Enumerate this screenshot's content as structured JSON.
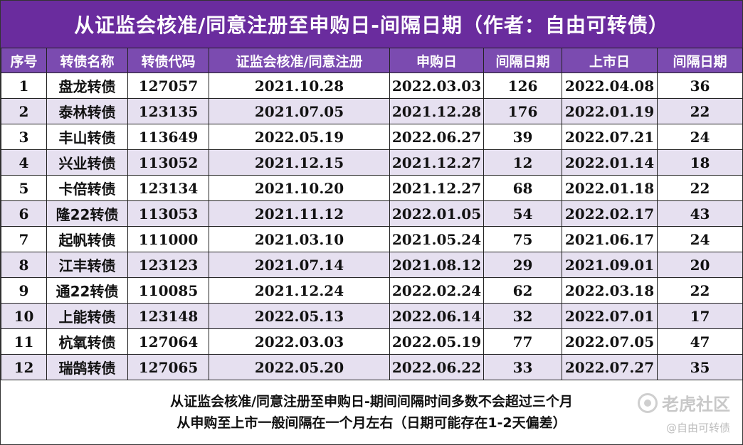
{
  "title": "从证监会核准/同意注册至申购日-间隔日期（作者：自由可转债）",
  "columns": [
    "序号",
    "转债名称",
    "转债代码",
    "证监会核准/同意注册",
    "申购日",
    "间隔日期",
    "上市日",
    "间隔日期"
  ],
  "rows": [
    [
      "1",
      "盘龙转债",
      "127057",
      "2021.10.28",
      "2022.03.03",
      "126",
      "2022.04.08",
      "36"
    ],
    [
      "2",
      "泰林转债",
      "123135",
      "2021.07.05",
      "2021.12.28",
      "176",
      "2022.01.19",
      "22"
    ],
    [
      "3",
      "丰山转债",
      "113649",
      "2022.05.19",
      "2022.06.27",
      "39",
      "2022.07.21",
      "24"
    ],
    [
      "4",
      "兴业转债",
      "113052",
      "2021.12.15",
      "2021.12.27",
      "12",
      "2022.01.14",
      "18"
    ],
    [
      "5",
      "卡倍转债",
      "123134",
      "2021.10.20",
      "2021.12.27",
      "68",
      "2022.01.18",
      "22"
    ],
    [
      "6",
      "隆22转债",
      "113053",
      "2021.11.12",
      "2022.01.05",
      "54",
      "2022.02.17",
      "43"
    ],
    [
      "7",
      "起帆转债",
      "111000",
      "2021.03.10",
      "2021.05.24",
      "75",
      "2021.06.17",
      "24"
    ],
    [
      "8",
      "江丰转债",
      "123123",
      "2021.07.14",
      "2021.08.12",
      "29",
      "2021.09.01",
      "20"
    ],
    [
      "9",
      "通22转债",
      "110085",
      "2021.12.24",
      "2022.02.24",
      "62",
      "2022.03.18",
      "22"
    ],
    [
      "10",
      "上能转债",
      "123148",
      "2022.05.13",
      "2022.06.14",
      "32",
      "2022.07.01",
      "17"
    ],
    [
      "11",
      "杭氧转债",
      "127064",
      "2022.03.03",
      "2022.05.19",
      "77",
      "2022.07.05",
      "47"
    ],
    [
      "12",
      "瑞鹄转债",
      "127065",
      "2022.05.20",
      "2022.06.22",
      "33",
      "2022.07.27",
      "35"
    ]
  ],
  "footer": {
    "line1": "从证监会核准/同意注册至申购日-期间间隔时间多数不会超过三个月",
    "line2": "从申购至上市一般间隔在一个月左右（日期可能存在1-2天偏差）"
  },
  "watermark": {
    "brand": "老虎社区",
    "author": "@自由可转债",
    "icon": "tiger-logo-icon"
  },
  "colors": {
    "title_bg": "#6a2c9e",
    "header_bg": "#7b4bb0",
    "stripe": "#e6e0f0"
  }
}
